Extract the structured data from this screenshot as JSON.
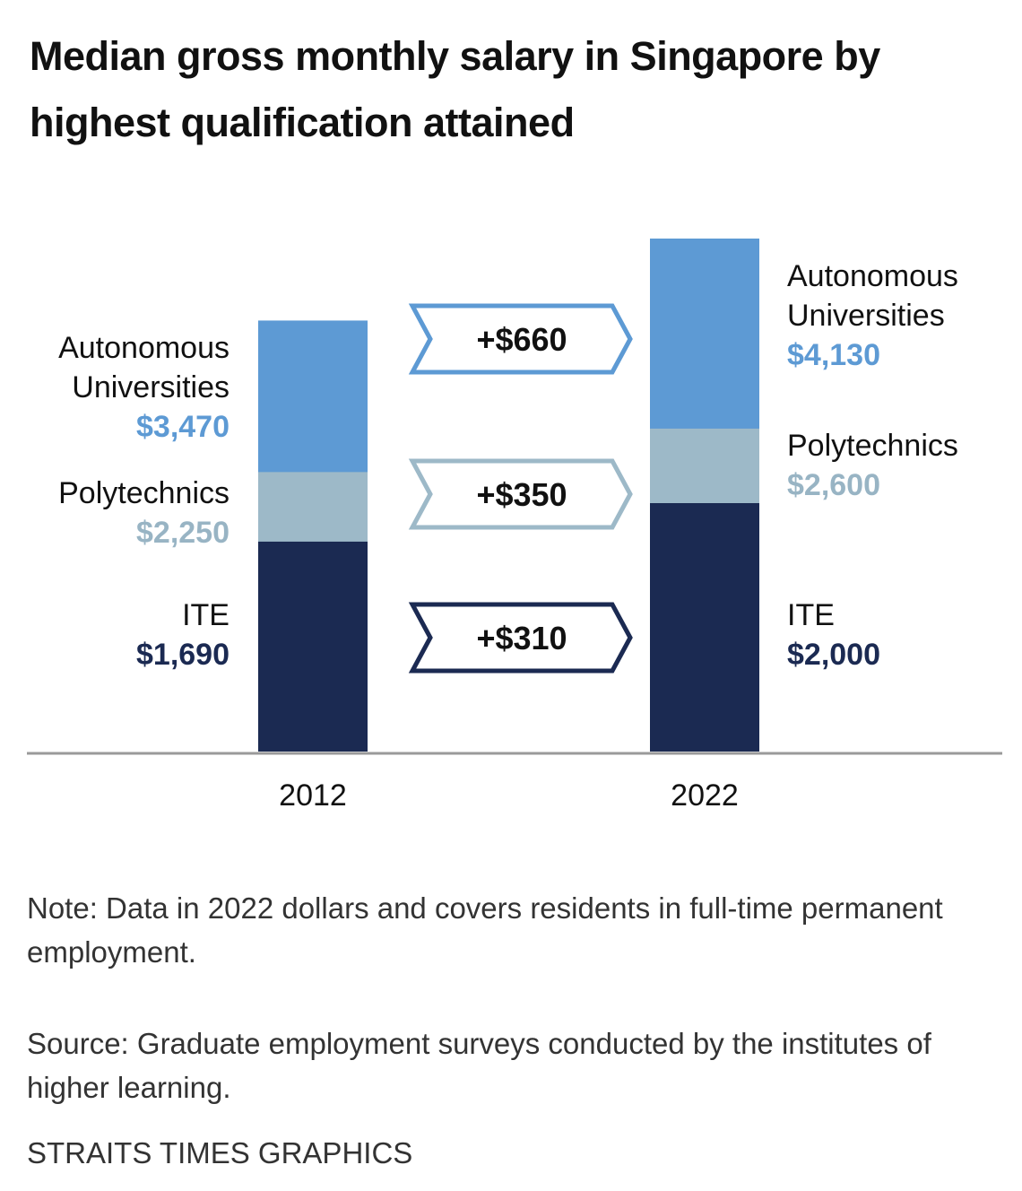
{
  "chart_data": {
    "type": "bar",
    "title": "Median gross monthly salary in Singapore by highest qualification attained",
    "categories": [
      "2012",
      "2022"
    ],
    "series": [
      {
        "name": "Autonomous Universities",
        "color": "#5d9ad4",
        "values": [
          3470,
          4130
        ],
        "value_labels": [
          "$3,470",
          "$4,130"
        ]
      },
      {
        "name": "Polytechnics",
        "color": "#9db9c8",
        "values": [
          2250,
          2600
        ],
        "value_labels": [
          "$2,250",
          "$2,600"
        ]
      },
      {
        "name": "ITE",
        "color": "#1b2a52",
        "values": [
          1690,
          2000
        ],
        "value_labels": [
          "$1,690",
          "$2,000"
        ]
      }
    ],
    "annotations": [
      "+$660",
      "+$350",
      "+$310"
    ],
    "ylim": [
      0,
      4130
    ],
    "note": "Note: Data in 2022 dollars and covers residents in full-time permanent employment.",
    "source": "Source: Graduate employment surveys conducted by the institutes of higher learning.",
    "credit": "STRAITS TIMES GRAPHICS"
  }
}
